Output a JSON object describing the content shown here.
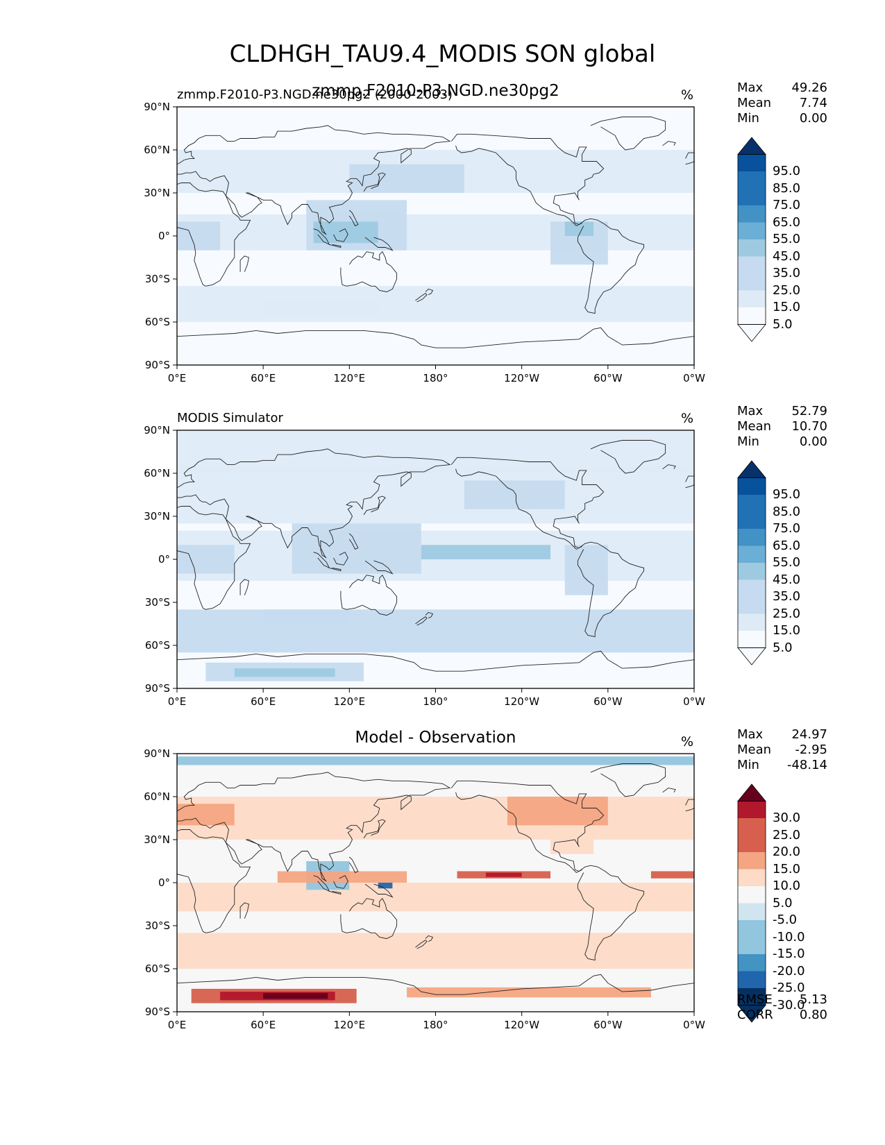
{
  "title": "CLDHGH_TAU9.4_MODIS SON global",
  "panels": [
    {
      "left_title": "zmmp.F2010-P3.NGD.ne30pg2 (2000-2003)",
      "center_title": "zmmp.F2010-P3.NGD.ne30pg2",
      "units": "%",
      "stats": {
        "max_label": "Max",
        "max": "49.26",
        "mean_label": "Mean",
        "mean": "7.74",
        "min_label": "Min",
        "min": "0.00"
      },
      "colorbar_labels": [
        "95.0",
        "85.0",
        "75.0",
        "65.0",
        "55.0",
        "45.0",
        "35.0",
        "25.0",
        "15.0",
        "5.0"
      ]
    },
    {
      "left_title": "MODIS Simulator",
      "center_title": "",
      "units": "%",
      "stats": {
        "max_label": "Max",
        "max": "52.79",
        "mean_label": "Mean",
        "mean": "10.70",
        "min_label": "Min",
        "min": "0.00"
      },
      "colorbar_labels": [
        "95.0",
        "85.0",
        "75.0",
        "65.0",
        "55.0",
        "45.0",
        "35.0",
        "25.0",
        "15.0",
        "5.0"
      ]
    },
    {
      "left_title": "",
      "center_title": "Model - Observation",
      "units": "%",
      "stats": {
        "max_label": "Max",
        "max": "24.97",
        "mean_label": "Mean",
        "mean": "-2.95",
        "min_label": "Min",
        "min": "-48.14"
      },
      "colorbar_labels": [
        "30.0",
        "25.0",
        "20.0",
        "15.0",
        "10.0",
        "5.0",
        "-5.0",
        "-10.0",
        "-15.0",
        "-20.0",
        "-25.0",
        "-30.0"
      ],
      "extra": {
        "rmse_label": "RMSE",
        "rmse": "5.13",
        "corr_label": "CORR",
        "corr": "0.80"
      }
    }
  ],
  "chart_data": {
    "type": "heatmap",
    "xlabel_ticks": [
      "0°E",
      "60°E",
      "120°E",
      "180°",
      "120°W",
      "60°W",
      "0°W"
    ],
    "ylabel_ticks": [
      "90°N",
      "60°N",
      "30°N",
      "0°",
      "30°S",
      "60°S",
      "90°S"
    ],
    "x_range": [
      0,
      360
    ],
    "y_range": [
      -90,
      90
    ],
    "colors_seq": [
      "#f7fbff",
      "#deebf7",
      "#c6dbef",
      "#9ecae1",
      "#6baed6",
      "#4292c6",
      "#2171b5",
      "#08519c",
      "#08306b"
    ],
    "colors_div": [
      "#67001f",
      "#b2182b",
      "#d6604d",
      "#f4a582",
      "#fddbc7",
      "#f7f7f7",
      "#d1e5f0",
      "#92c5de",
      "#4393c3",
      "#2166ac",
      "#053061"
    ]
  }
}
